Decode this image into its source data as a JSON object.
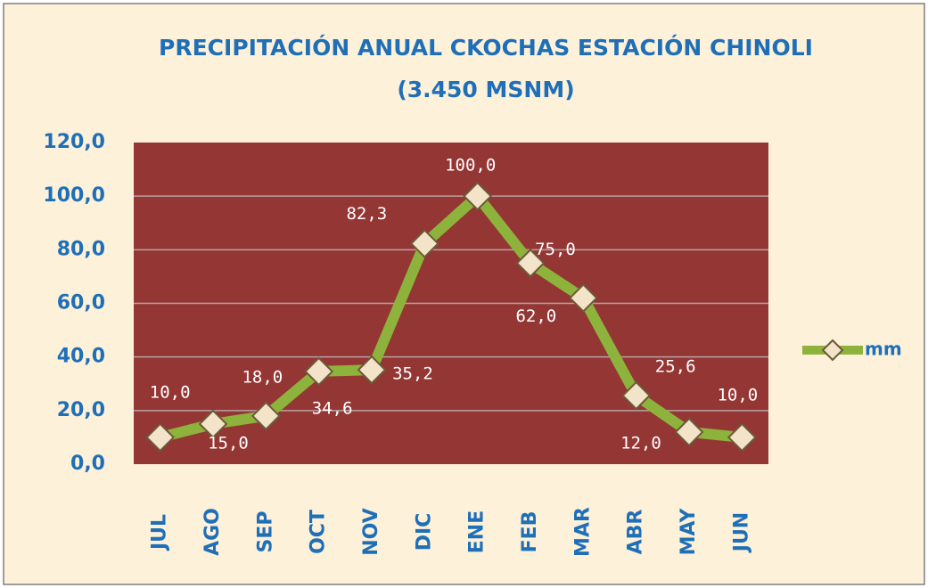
{
  "chart_data": {
    "type": "line",
    "title": [
      "PRECIPITACIÓN ANUAL CKOCHAS  ESTACIÓN CHINOLI",
      "(3.450 MSNM)"
    ],
    "categories": [
      "JUL",
      "AGO",
      "SEP",
      "OCT",
      "NOV",
      "DIC",
      "ENE",
      "FEB",
      "MAR",
      "ABR",
      "MAY",
      "JUN"
    ],
    "series": [
      {
        "name": "mm",
        "color": "#8db33c",
        "values": [
          10.0,
          15.0,
          18.0,
          34.6,
          35.2,
          82.3,
          100.0,
          75.0,
          62.0,
          25.6,
          12.0,
          10.0
        ],
        "value_labels": [
          "10,0",
          "15,0",
          "18,0",
          "34,6",
          "35,2",
          "82,3",
          "100,0",
          "75,0",
          "62,0",
          "25,6",
          "12,0",
          "10,0"
        ]
      }
    ],
    "ylim": [
      0,
      120
    ],
    "yticks": [
      {
        "value": 0,
        "label": "0,0"
      },
      {
        "value": 20,
        "label": "20,0"
      },
      {
        "value": 40,
        "label": "40,0"
      },
      {
        "value": 60,
        "label": "60,0"
      },
      {
        "value": 80,
        "label": "80,0"
      },
      {
        "value": 100,
        "label": "100,0"
      },
      {
        "value": 120,
        "label": "120,0"
      }
    ],
    "grid": true,
    "legend": "right"
  }
}
